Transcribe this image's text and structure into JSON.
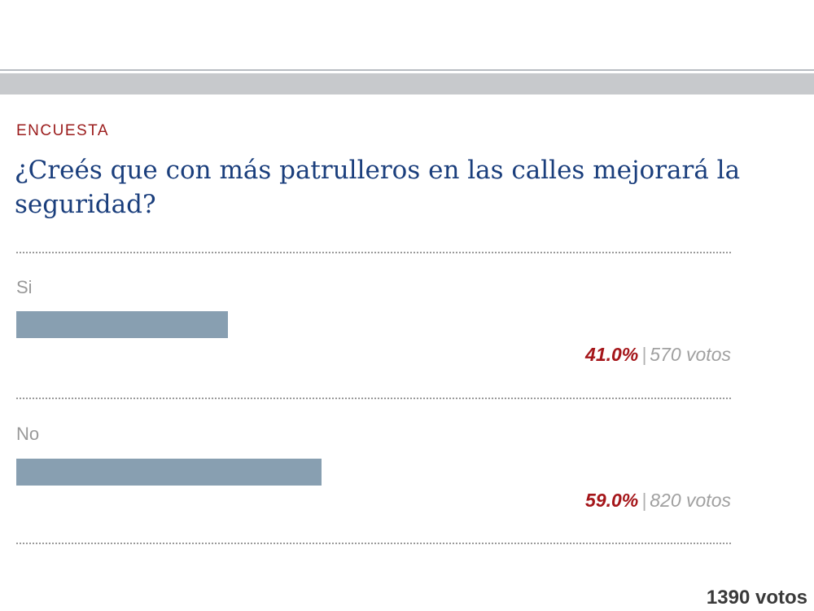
{
  "poll": {
    "kicker": "ENCUESTA",
    "question": "¿Creés que con más patrulleros en las calles mejorará la seguridad?",
    "options": [
      {
        "label": "Si",
        "percent": "41.0%",
        "votes": "570 votos",
        "fraction": 0.41
      },
      {
        "label": "No",
        "percent": "59.0%",
        "votes": "820 votos",
        "fraction": 0.59
      }
    ],
    "separator": "|",
    "total": "1390 votos"
  },
  "colors": {
    "kicker": "#9b1c1c",
    "question": "#1a3e7c",
    "bar": "#889fb1",
    "percent": "#a5161a",
    "band": "#c7c9cc"
  }
}
